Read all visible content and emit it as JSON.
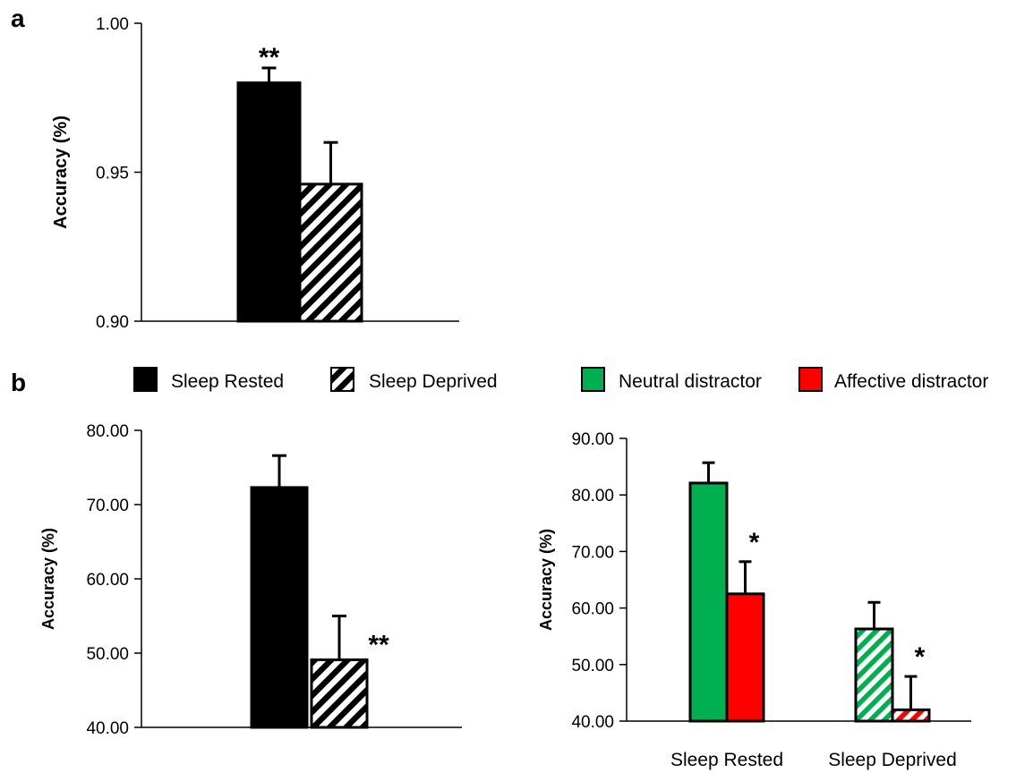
{
  "panel_labels": {
    "a": "a",
    "b": "b"
  },
  "legend": [
    {
      "label": "Sleep Rested",
      "style": "solid",
      "fill": "#000000"
    },
    {
      "label": "Sleep Deprived",
      "style": "hatch",
      "fill": "#000000"
    },
    {
      "label": "Neutral distractor",
      "style": "solid",
      "fill": "#00b050"
    },
    {
      "label": "Affective distractor",
      "style": "solid",
      "fill": "#ff0000"
    }
  ],
  "colors": {
    "black": "#000000",
    "green": "#00b050",
    "red": "#ff0000",
    "white": "#ffffff"
  },
  "chart_data": [
    {
      "panel": "a",
      "type": "bar",
      "ylabel": "Accuracy (%)",
      "ylim": [
        0.9,
        1.0
      ],
      "yticks": [
        "0.90",
        "0.95",
        "1.00"
      ],
      "categories": [
        ""
      ],
      "series": [
        {
          "name": "Sleep Rested",
          "values": [
            0.98
          ],
          "errors": [
            0.005
          ],
          "fill": "solid"
        },
        {
          "name": "Sleep Deprived",
          "values": [
            0.946
          ],
          "errors": [
            0.014
          ],
          "fill": "hatch"
        }
      ],
      "annotations": [
        {
          "text": "**",
          "series": 0,
          "category": 0
        }
      ],
      "grid": false
    },
    {
      "panel": "b-left",
      "type": "bar",
      "ylabel": "Accuracy (%)",
      "ylim": [
        40,
        80
      ],
      "yticks": [
        "40.00",
        "50.00",
        "60.00",
        "70.00",
        "80.00"
      ],
      "categories": [
        ""
      ],
      "series": [
        {
          "name": "Sleep Rested",
          "values": [
            72.3
          ],
          "errors": [
            4.3
          ],
          "fill": "solid"
        },
        {
          "name": "Sleep Deprived",
          "values": [
            49.1
          ],
          "errors": [
            5.9
          ],
          "fill": "hatch"
        }
      ],
      "annotations": [
        {
          "text": "**",
          "series": 1,
          "category": 0
        }
      ],
      "grid": false
    },
    {
      "panel": "b-right",
      "type": "bar",
      "ylabel": "Accuracy (%)",
      "ylim": [
        40,
        90
      ],
      "yticks": [
        "40.00",
        "50.00",
        "60.00",
        "70.00",
        "80.00",
        "90.00"
      ],
      "categories": [
        "Sleep Rested",
        "Sleep Deprived"
      ],
      "series": [
        {
          "name": "Neutral distractor",
          "values": [
            82.1,
            56.3
          ],
          "errors": [
            3.6,
            4.7
          ]
        },
        {
          "name": "Affective distractor",
          "values": [
            62.5,
            42.0
          ],
          "errors": [
            5.7,
            5.9
          ]
        }
      ],
      "annotations": [
        {
          "text": "*",
          "series": 1,
          "category": 0
        },
        {
          "text": "*",
          "series": 1,
          "category": 1
        }
      ],
      "grid": false
    }
  ]
}
